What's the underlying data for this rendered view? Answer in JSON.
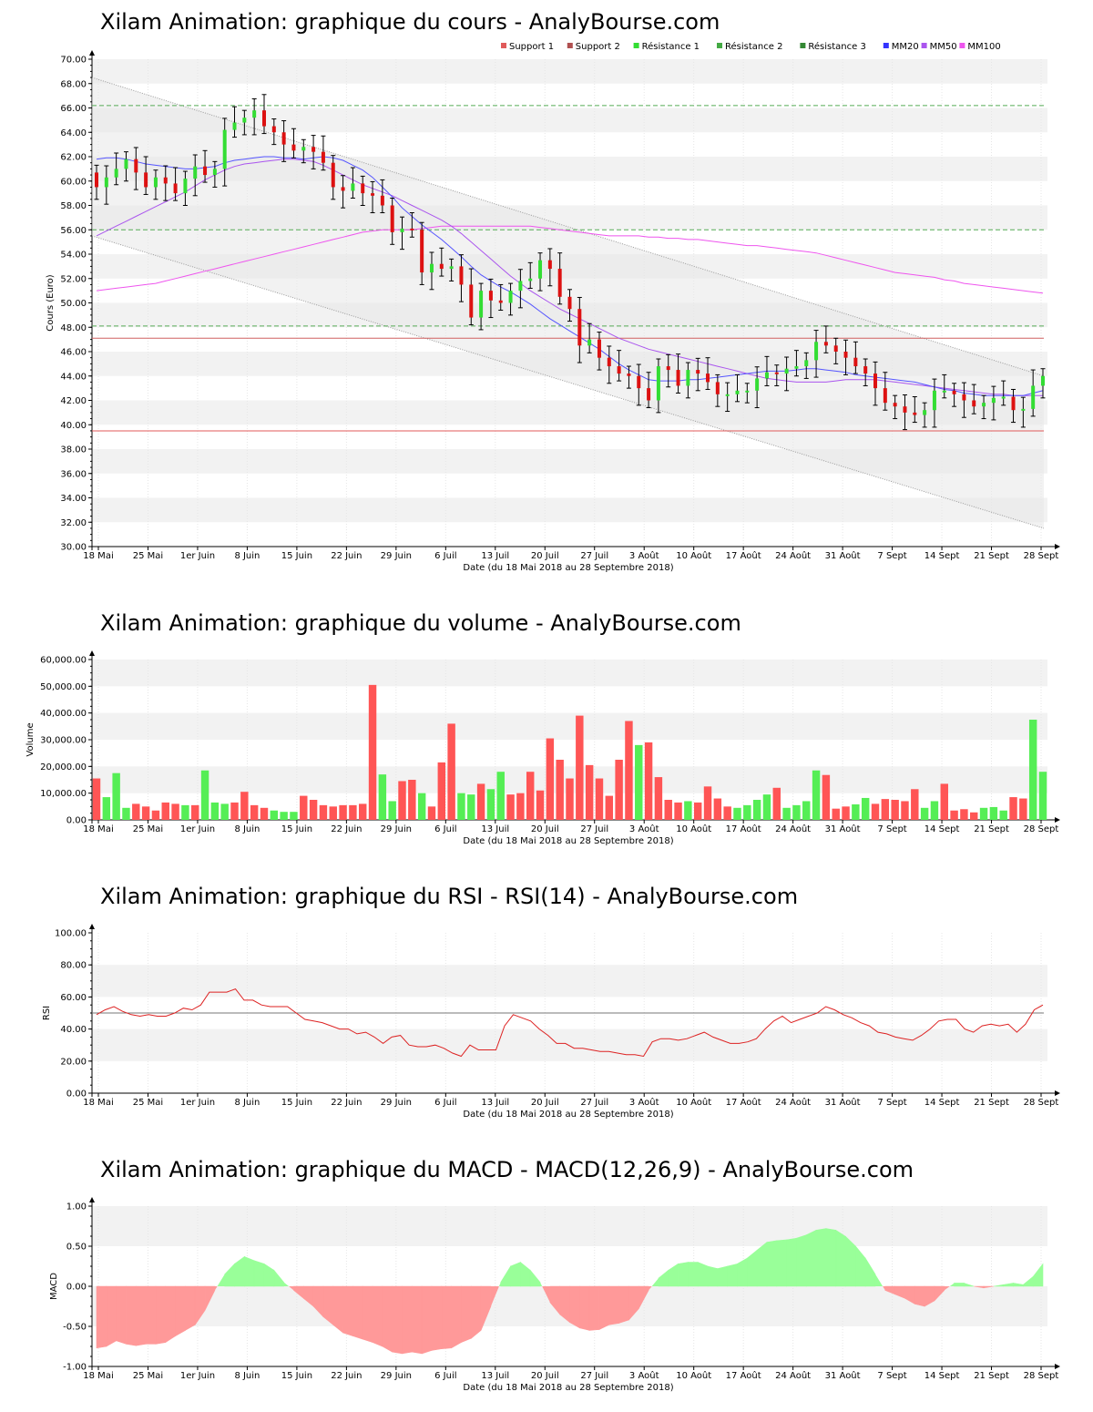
{
  "chart_data": [
    {
      "type": "candlestick",
      "title": "Xilam Animation: graphique du cours - AnalyBourse.com",
      "xlabel": "Date (du 18 Mai 2018 au 28 Septembre 2018)",
      "ylabel": "Cours (Euro)",
      "ylim": [
        30,
        70
      ],
      "yticks": [
        "30.00",
        "32.00",
        "34.00",
        "36.00",
        "38.00",
        "40.00",
        "42.00",
        "44.00",
        "46.00",
        "48.00",
        "50.00",
        "52.00",
        "54.00",
        "56.00",
        "58.00",
        "60.00",
        "62.00",
        "64.00",
        "66.00",
        "68.00",
        "70.00"
      ],
      "xticks": [
        "18 Mai",
        "25 Mai",
        "1er Juin",
        "8 Juin",
        "15 Juin",
        "22 Juin",
        "29 Juin",
        "6 Juil",
        "13 Juil",
        "20 Juil",
        "27 Juil",
        "3 Août",
        "10 Août",
        "17 Août",
        "24 Août",
        "31 Août",
        "7 Sept",
        "14 Sept",
        "21 Sept",
        "28 Sept"
      ],
      "legend": [
        "Support 1",
        "Support 2",
        "Résistance 1",
        "Résistance 2",
        "Résistance 3",
        "MM20",
        "MM50",
        "MM100"
      ],
      "legend_colors": [
        "#e05a5a",
        "#b05050",
        "#33dd33",
        "#44aa44",
        "#338833",
        "#3333ff",
        "#aa55ee",
        "#ee55ee"
      ],
      "levels": {
        "support_1": 39.5,
        "support_2": 47.1,
        "resistance_1": 48.1,
        "resistance_2": 56.0,
        "resistance_3": 66.2
      },
      "close": [
        59.5,
        60.3,
        61.0,
        61.8,
        60.7,
        59.5,
        60.3,
        59.8,
        59.0,
        60.2,
        61.2,
        60.5,
        61.0,
        64.2,
        64.8,
        65.2,
        65.8,
        64.5,
        64.0,
        63.0,
        62.5,
        62.8,
        62.4,
        61.5,
        59.5,
        59.2,
        59.8,
        59.0,
        58.8,
        58.0,
        55.8,
        56.1,
        56.0,
        52.5,
        53.2,
        52.8,
        53.0,
        51.5,
        48.8,
        51.0,
        50.2,
        50.0,
        51.0,
        51.8,
        52.0,
        53.5,
        52.8,
        50.5,
        49.5,
        46.5,
        47.0,
        45.5,
        44.8,
        44.2,
        44.0,
        43.0,
        42.0,
        44.8,
        44.5,
        43.2,
        44.5,
        44.2,
        43.5,
        42.5,
        42.5,
        42.8,
        42.8,
        43.8,
        44.3,
        44.2,
        44.6,
        44.8,
        45.3,
        46.8,
        46.5,
        46.0,
        45.5,
        44.8,
        44.2,
        43.0,
        41.8,
        41.5,
        41.0,
        40.8,
        41.2,
        42.8,
        42.8,
        42.5,
        42.0,
        41.5,
        41.8,
        42.2,
        42.3,
        41.2,
        41.3,
        43.2,
        44.0
      ],
      "mm20": [
        61.8,
        61.9,
        61.9,
        61.8,
        61.6,
        61.4,
        61.3,
        61.2,
        61.1,
        61.0,
        61.0,
        61.1,
        61.2,
        61.5,
        61.7,
        61.8,
        61.9,
        62.0,
        62.0,
        61.9,
        61.9,
        61.8,
        61.9,
        62.0,
        61.9,
        61.7,
        61.3,
        60.9,
        60.3,
        59.5,
        58.7,
        57.8,
        57.1,
        56.4,
        55.8,
        55.2,
        54.5,
        53.8,
        53.0,
        52.3,
        51.8,
        51.3,
        50.9,
        50.4,
        49.9,
        49.3,
        48.7,
        48.2,
        47.7,
        47.2,
        46.7,
        46.2,
        45.6,
        45.0,
        44.5,
        44.1,
        43.7,
        43.6,
        43.6,
        43.6,
        43.7,
        43.7,
        43.8,
        43.9,
        44.0,
        44.1,
        44.2,
        44.3,
        44.4,
        44.4,
        44.4,
        44.5,
        44.6,
        44.6,
        44.5,
        44.4,
        44.3,
        44.1,
        44.0,
        43.9,
        43.8,
        43.7,
        43.6,
        43.5,
        43.3,
        43.1,
        42.9,
        42.8,
        42.6,
        42.5,
        42.4,
        42.4,
        42.4,
        42.4,
        42.4,
        42.6,
        42.8
      ],
      "mm50": [
        55.5,
        55.9,
        56.3,
        56.7,
        57.1,
        57.5,
        57.9,
        58.3,
        58.7,
        59.1,
        59.6,
        60.1,
        60.5,
        60.9,
        61.2,
        61.4,
        61.5,
        61.6,
        61.7,
        61.8,
        61.8,
        61.7,
        61.6,
        61.3,
        60.9,
        60.5,
        60.1,
        59.7,
        59.4,
        59.1,
        58.8,
        58.4,
        58.0,
        57.6,
        57.2,
        56.8,
        56.3,
        55.7,
        55.0,
        54.3,
        53.6,
        52.9,
        52.2,
        51.6,
        51.0,
        50.5,
        50.0,
        49.5,
        49.1,
        48.7,
        48.3,
        47.9,
        47.5,
        47.1,
        46.8,
        46.5,
        46.2,
        46.0,
        45.8,
        45.6,
        45.4,
        45.2,
        45.0,
        44.8,
        44.6,
        44.4,
        44.2,
        44.0,
        43.8,
        43.7,
        43.6,
        43.5,
        43.5,
        43.5,
        43.5,
        43.6,
        43.7,
        43.7,
        43.7,
        43.7,
        43.6,
        43.5,
        43.4,
        43.3,
        43.2,
        43.1,
        43.0,
        42.9,
        42.8,
        42.7,
        42.6,
        42.5,
        42.5,
        42.4,
        42.4,
        42.4,
        42.4
      ],
      "mm100": [
        51.0,
        51.1,
        51.2,
        51.3,
        51.4,
        51.5,
        51.6,
        51.8,
        52.0,
        52.2,
        52.4,
        52.6,
        52.8,
        53.0,
        53.2,
        53.4,
        53.6,
        53.8,
        54.0,
        54.2,
        54.4,
        54.6,
        54.8,
        55.0,
        55.2,
        55.4,
        55.6,
        55.8,
        55.9,
        56.0,
        56.0,
        56.0,
        56.0,
        56.1,
        56.2,
        56.3,
        56.3,
        56.3,
        56.3,
        56.3,
        56.3,
        56.3,
        56.3,
        56.3,
        56.3,
        56.2,
        56.1,
        56.0,
        55.9,
        55.8,
        55.7,
        55.6,
        55.5,
        55.5,
        55.5,
        55.5,
        55.4,
        55.4,
        55.3,
        55.3,
        55.2,
        55.2,
        55.1,
        55.0,
        54.9,
        54.8,
        54.7,
        54.7,
        54.6,
        54.5,
        54.4,
        54.3,
        54.2,
        54.1,
        53.9,
        53.7,
        53.5,
        53.3,
        53.1,
        52.9,
        52.7,
        52.5,
        52.4,
        52.3,
        52.2,
        52.1,
        51.9,
        51.8,
        51.6,
        51.5,
        51.4,
        51.3,
        51.2,
        51.1,
        51.0,
        50.9,
        50.8
      ],
      "channel_upper": [
        68.5,
        44.0
      ],
      "channel_lower": [
        55.5,
        31.5
      ]
    },
    {
      "type": "bar",
      "title": "Xilam Animation: graphique du volume - AnalyBourse.com",
      "xlabel": "Date (du 18 Mai 2018 au 28 Septembre 2018)",
      "ylabel": "Volume",
      "ylim": [
        0,
        60000
      ],
      "yticks": [
        "0.00",
        "10,000.00",
        "20,000.00",
        "30,000.00",
        "40,000.00",
        "50,000.00",
        "60,000.00"
      ],
      "xticks": [
        "18 Mai",
        "25 Mai",
        "1er Juin",
        "8 Juin",
        "15 Juin",
        "22 Juin",
        "29 Juin",
        "6 Juil",
        "13 Juil",
        "20 Juil",
        "27 Juil",
        "3 Août",
        "10 Août",
        "17 Août",
        "24 Août",
        "31 Août",
        "7 Sept",
        "14 Sept",
        "21 Sept",
        "28 Sept"
      ],
      "values": [
        15500,
        8500,
        17500,
        4500,
        6000,
        5000,
        3500,
        6500,
        6000,
        5500,
        5500,
        18500,
        6500,
        6000,
        6500,
        10500,
        5500,
        4500,
        3500,
        3000,
        3000,
        9000,
        7500,
        5500,
        5000,
        5500,
        5500,
        6000,
        50500,
        17000,
        7000,
        14500,
        15000,
        10000,
        5000,
        21500,
        36000,
        10000,
        9500,
        13500,
        11500,
        18000,
        9500,
        10000,
        18000,
        11000,
        30500,
        22500,
        15500,
        39000,
        20500,
        15500,
        9000,
        22500,
        37000,
        28000,
        29000,
        16000,
        7500,
        6500,
        7000,
        6500,
        12500,
        8000,
        5000,
        4500,
        5500,
        7500,
        9500,
        12000,
        4500,
        5500,
        7000,
        18500,
        16800,
        4200,
        5000,
        5800,
        8200,
        6000,
        7800,
        7500,
        7000,
        11500,
        4500,
        7000,
        13500,
        3500,
        4000,
        2800,
        4500,
        4800,
        3500,
        8500,
        8000,
        37500,
        18000
      ],
      "up": [
        0,
        1,
        1,
        1,
        0,
        0,
        0,
        0,
        0,
        1,
        0,
        1,
        1,
        1,
        0,
        0,
        0,
        0,
        1,
        1,
        1,
        0,
        0,
        0,
        0,
        0,
        0,
        0,
        0,
        1,
        1,
        0,
        0,
        1,
        0,
        0,
        0,
        1,
        1,
        0,
        1,
        1,
        0,
        0,
        0,
        0,
        0,
        0,
        0,
        0,
        0,
        0,
        0,
        0,
        0,
        1,
        0,
        0,
        0,
        0,
        1,
        0,
        0,
        0,
        0,
        1,
        1,
        1,
        1,
        0,
        1,
        1,
        1,
        1,
        0,
        0,
        0,
        1,
        1,
        0,
        0,
        0,
        0,
        0,
        1,
        1,
        0,
        0,
        0,
        0,
        1,
        1,
        1,
        0,
        0,
        1,
        1
      ]
    },
    {
      "type": "line",
      "title": "Xilam Animation: graphique du RSI - RSI(14) - AnalyBourse.com",
      "xlabel": "Date (du 18 Mai 2018 au 28 Septembre 2018)",
      "ylabel": "RSI",
      "ylim": [
        0,
        100
      ],
      "yticks": [
        "0.00",
        "20.00",
        "40.00",
        "60.00",
        "80.00",
        "100.00"
      ],
      "xticks": [
        "18 Mai",
        "25 Mai",
        "1er Juin",
        "8 Juin",
        "15 Juin",
        "22 Juin",
        "29 Juin",
        "6 Juil",
        "13 Juil",
        "20 Juil",
        "27 Juil",
        "3 Août",
        "10 Août",
        "17 Août",
        "24 Août",
        "31 Août",
        "7 Sept",
        "14 Sept",
        "21 Sept",
        "28 Sept"
      ],
      "reference": 50,
      "values": [
        49,
        52,
        54,
        51,
        49,
        48,
        49,
        48,
        48,
        50,
        53,
        52,
        55,
        63,
        63,
        63,
        65,
        58,
        58,
        55,
        54,
        54,
        54,
        50,
        46,
        45,
        44,
        42,
        40,
        40,
        37,
        38,
        35,
        31,
        35,
        36,
        30,
        29,
        29,
        30,
        28,
        25,
        23,
        30,
        27,
        27,
        27,
        42,
        49,
        47,
        45,
        40,
        36,
        31,
        31,
        28,
        28,
        27,
        26,
        26,
        25,
        24,
        24,
        23,
        32,
        34,
        34,
        33,
        34,
        36,
        38,
        35,
        33,
        31,
        31,
        32,
        34,
        40,
        45,
        48,
        44,
        46,
        48,
        50,
        54,
        52,
        49,
        47,
        44,
        42,
        38,
        37,
        35,
        34,
        33,
        36,
        40,
        45,
        46,
        46,
        40,
        38,
        42,
        43,
        42,
        43,
        38,
        43,
        52,
        55
      ]
    },
    {
      "type": "area",
      "title": "Xilam Animation: graphique du MACD - MACD(12,26,9) - AnalyBourse.com",
      "xlabel": "Date (du 18 Mai 2018 au 28 Septembre 2018)",
      "ylabel": "MACD",
      "ylim": [
        -1.0,
        1.0
      ],
      "yticks": [
        "-1.00",
        "-0.50",
        "0.00",
        "0.50",
        "1.00"
      ],
      "xticks": [
        "18 Mai",
        "25 Mai",
        "1er Juin",
        "8 Juin",
        "15 Juin",
        "22 Juin",
        "29 Juin",
        "6 Juil",
        "13 Juil",
        "20 Juil",
        "27 Juil",
        "3 Août",
        "10 Août",
        "17 Août",
        "24 Août",
        "31 Août",
        "7 Sept",
        "14 Sept",
        "21 Sept",
        "28 Sept"
      ],
      "values": [
        -0.77,
        -0.75,
        -0.68,
        -0.72,
        -0.74,
        -0.72,
        -0.72,
        -0.7,
        -0.62,
        -0.55,
        -0.48,
        -0.3,
        -0.05,
        0.15,
        0.28,
        0.37,
        0.32,
        0.28,
        0.2,
        0.05,
        -0.05,
        -0.15,
        -0.25,
        -0.38,
        -0.48,
        -0.58,
        -0.62,
        -0.66,
        -0.7,
        -0.75,
        -0.82,
        -0.84,
        -0.82,
        -0.84,
        -0.8,
        -0.78,
        -0.77,
        -0.7,
        -0.65,
        -0.55,
        -0.25,
        0.05,
        0.25,
        0.3,
        0.2,
        0.05,
        -0.2,
        -0.35,
        -0.45,
        -0.52,
        -0.55,
        -0.54,
        -0.48,
        -0.46,
        -0.42,
        -0.28,
        -0.05,
        0.1,
        0.2,
        0.28,
        0.3,
        0.3,
        0.25,
        0.22,
        0.25,
        0.28,
        0.35,
        0.45,
        0.55,
        0.57,
        0.58,
        0.6,
        0.64,
        0.7,
        0.72,
        0.7,
        0.62,
        0.5,
        0.35,
        0.15,
        -0.05,
        -0.1,
        -0.15,
        -0.22,
        -0.25,
        -0.18,
        -0.05,
        0.04,
        0.04,
        0.0,
        -0.02,
        0.0,
        0.02,
        0.04,
        0.02,
        0.12,
        0.28
      ]
    }
  ]
}
